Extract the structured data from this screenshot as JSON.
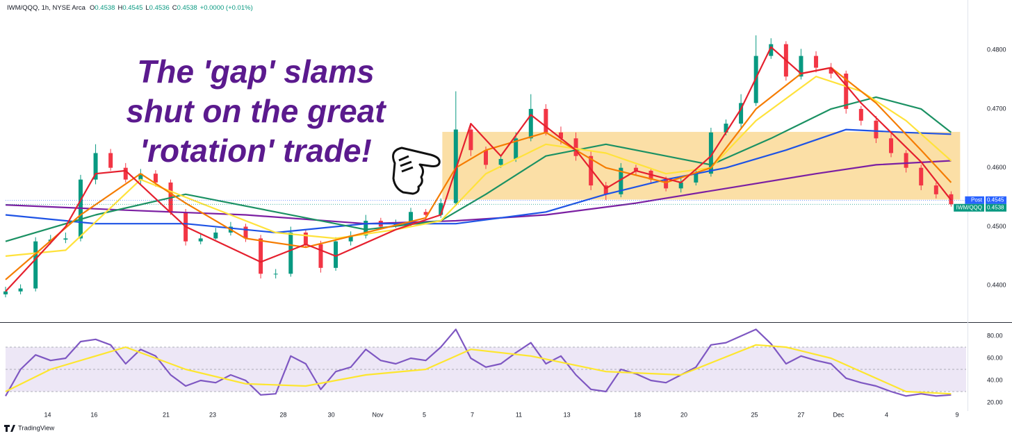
{
  "header": {
    "symbol": "IWM/QQQ, 1h, NYSE Arca",
    "ohlc": [
      {
        "key": "O",
        "text": "0.4538"
      },
      {
        "key": "H",
        "text": "0.4545"
      },
      {
        "key": "L",
        "text": "0.4536"
      },
      {
        "key": "C",
        "text": "0.4538"
      }
    ],
    "change": "+0.0000 (+0.01%)"
  },
  "branding": "TradingView",
  "chart_data": [
    {
      "type": "candlestick",
      "xlim": [
        0,
        64
      ],
      "ylim": [
        0.4339,
        0.4885
      ],
      "yticks": [
        {
          "value": 0.44,
          "label": "0.4400"
        },
        {
          "value": 0.45,
          "label": "0.4500"
        },
        {
          "value": 0.46,
          "label": "0.4600"
        },
        {
          "value": 0.47,
          "label": "0.4700"
        },
        {
          "value": 0.48,
          "label": "0.4800"
        }
      ],
      "up_color": "#089981",
      "down_color": "#f23645",
      "open": [
        0.4385,
        0.439,
        0.4395,
        0.4475,
        0.4478,
        0.448,
        0.458,
        0.4625,
        0.46,
        0.458,
        0.459,
        0.4575,
        0.4525,
        0.4475,
        0.448,
        0.449,
        0.45,
        0.448,
        0.442,
        0.442,
        0.449,
        0.447,
        0.443,
        0.4475,
        0.4485,
        0.451,
        0.45,
        0.4505,
        0.4525,
        0.452,
        0.454,
        0.4665,
        0.463,
        0.4605,
        0.4615,
        0.465,
        0.47,
        0.466,
        0.465,
        0.462,
        0.457,
        0.4555,
        0.46,
        0.4595,
        0.458,
        0.4565,
        0.4575,
        0.459,
        0.466,
        0.4675,
        0.471,
        0.479,
        0.481,
        0.4755,
        0.479,
        0.477,
        0.476,
        0.47,
        0.468,
        0.465,
        0.4625,
        0.46,
        0.457,
        0.4555
      ],
      "high": [
        0.4398,
        0.4402,
        0.4482,
        0.4486,
        0.449,
        0.4588,
        0.464,
        0.4632,
        0.4608,
        0.4598,
        0.4596,
        0.458,
        0.453,
        0.4488,
        0.4498,
        0.4508,
        0.4505,
        0.4486,
        0.4428,
        0.45,
        0.4495,
        0.4476,
        0.4482,
        0.4492,
        0.452,
        0.4515,
        0.4512,
        0.4532,
        0.453,
        0.4548,
        0.473,
        0.4675,
        0.4636,
        0.4622,
        0.466,
        0.4725,
        0.4708,
        0.467,
        0.466,
        0.4628,
        0.4576,
        0.4608,
        0.4605,
        0.46,
        0.4585,
        0.4582,
        0.4598,
        0.4668,
        0.4682,
        0.4725,
        0.4825,
        0.482,
        0.4815,
        0.4802,
        0.4798,
        0.4778,
        0.4765,
        0.4705,
        0.4688,
        0.4658,
        0.463,
        0.4605,
        0.4575,
        0.456
      ],
      "low": [
        0.438,
        0.4385,
        0.439,
        0.447,
        0.4472,
        0.4475,
        0.4572,
        0.4595,
        0.4575,
        0.4572,
        0.4568,
        0.452,
        0.4468,
        0.447,
        0.4478,
        0.4485,
        0.4474,
        0.4412,
        0.4412,
        0.4415,
        0.4465,
        0.4422,
        0.4425,
        0.4468,
        0.448,
        0.4495,
        0.4498,
        0.45,
        0.4512,
        0.4515,
        0.4535,
        0.462,
        0.4598,
        0.46,
        0.461,
        0.4645,
        0.4655,
        0.464,
        0.4612,
        0.4562,
        0.4545,
        0.455,
        0.4588,
        0.4574,
        0.456,
        0.4558,
        0.457,
        0.4585,
        0.4655,
        0.4668,
        0.4705,
        0.4785,
        0.4748,
        0.475,
        0.4762,
        0.4752,
        0.4692,
        0.4672,
        0.4642,
        0.4618,
        0.4592,
        0.4562,
        0.4548,
        0.4534
      ],
      "close": [
        0.439,
        0.4395,
        0.4475,
        0.4478,
        0.448,
        0.458,
        0.4625,
        0.46,
        0.458,
        0.459,
        0.4575,
        0.4525,
        0.4475,
        0.448,
        0.449,
        0.45,
        0.448,
        0.442,
        0.442,
        0.449,
        0.447,
        0.443,
        0.4475,
        0.4485,
        0.451,
        0.45,
        0.4505,
        0.4525,
        0.452,
        0.454,
        0.4665,
        0.463,
        0.4605,
        0.4615,
        0.465,
        0.47,
        0.466,
        0.465,
        0.462,
        0.457,
        0.4555,
        0.46,
        0.4595,
        0.458,
        0.4565,
        0.4575,
        0.459,
        0.466,
        0.4675,
        0.471,
        0.479,
        0.481,
        0.4755,
        0.479,
        0.477,
        0.476,
        0.47,
        0.468,
        0.465,
        0.4625,
        0.46,
        0.457,
        0.4555,
        0.4538
      ],
      "series": [
        {
          "color": "#7b1fa2",
          "x": [
            0,
            8,
            16,
            24,
            30,
            36,
            42,
            48,
            54,
            58,
            63
          ],
          "values": [
            0.4537,
            0.4528,
            0.452,
            0.4505,
            0.451,
            0.452,
            0.454,
            0.4565,
            0.459,
            0.4605,
            0.4612
          ]
        },
        {
          "color": "#1e53e5",
          "x": [
            0,
            6,
            12,
            18,
            24,
            30,
            36,
            40,
            44,
            48,
            52,
            56,
            60,
            63
          ],
          "values": [
            0.452,
            0.4505,
            0.4505,
            0.449,
            0.4505,
            0.4505,
            0.4525,
            0.4555,
            0.458,
            0.46,
            0.463,
            0.4665,
            0.466,
            0.4657
          ]
        },
        {
          "color": "#1b9163",
          "x": [
            0,
            6,
            12,
            18,
            24,
            29,
            32,
            36,
            40,
            44,
            47,
            51,
            55,
            58,
            61,
            63
          ],
          "values": [
            0.4475,
            0.452,
            0.4555,
            0.4525,
            0.4495,
            0.451,
            0.4555,
            0.462,
            0.464,
            0.462,
            0.4605,
            0.465,
            0.47,
            0.472,
            0.47,
            0.466
          ]
        },
        {
          "color": "#ffe23b",
          "x": [
            0,
            4,
            9,
            13,
            18,
            22,
            26,
            29,
            32,
            36,
            40,
            44,
            47,
            50,
            54,
            57,
            60,
            63
          ],
          "values": [
            0.445,
            0.446,
            0.458,
            0.454,
            0.449,
            0.448,
            0.4495,
            0.451,
            0.459,
            0.464,
            0.4625,
            0.459,
            0.46,
            0.468,
            0.4755,
            0.473,
            0.468,
            0.4612
          ]
        },
        {
          "color": "#f57c00",
          "x": [
            0,
            5,
            9,
            12,
            16,
            20,
            24,
            28,
            30,
            32,
            36,
            40,
            44,
            47,
            50,
            53,
            55,
            58,
            61,
            63
          ],
          "values": [
            0.441,
            0.452,
            0.459,
            0.454,
            0.448,
            0.4465,
            0.449,
            0.4515,
            0.46,
            0.463,
            0.466,
            0.46,
            0.4575,
            0.46,
            0.47,
            0.476,
            0.477,
            0.471,
            0.463,
            0.4575
          ]
        },
        {
          "color": "#e5202e",
          "x": [
            0,
            4,
            6,
            8,
            12,
            17,
            20,
            22,
            26,
            29,
            31,
            33,
            35,
            38,
            40,
            42,
            45,
            47,
            49,
            51,
            53,
            55,
            57,
            59,
            61,
            63
          ],
          "values": [
            0.439,
            0.45,
            0.459,
            0.4595,
            0.45,
            0.444,
            0.447,
            0.445,
            0.4495,
            0.452,
            0.4675,
            0.462,
            0.469,
            0.463,
            0.4565,
            0.4595,
            0.4575,
            0.462,
            0.47,
            0.4805,
            0.476,
            0.477,
            0.471,
            0.466,
            0.461,
            0.4545
          ]
        }
      ],
      "highlight": {
        "x": [
          29.1,
          63.6
        ],
        "y": [
          0.4546,
          0.4661
        ],
        "color": "#f9c96b"
      },
      "annotation": [
        "The 'gap' slams",
        "shut on the great",
        "'rotation' trade!"
      ],
      "price_tags": [
        {
          "name": "Post",
          "value": 0.4545,
          "label": "0.4545",
          "color": "#2962ff"
        },
        {
          "name": "IWM/QQQ",
          "value": 0.4538,
          "label": "0.4538",
          "color": "#089981"
        }
      ]
    },
    {
      "type": "line",
      "xlim": [
        0,
        64
      ],
      "ylim": [
        12.5,
        91.9
      ],
      "yticks": [
        {
          "value": 20,
          "label": "20.00"
        },
        {
          "value": 40,
          "label": "40.00"
        },
        {
          "value": 60,
          "label": "60.00"
        },
        {
          "value": 80,
          "label": "80.00"
        }
      ],
      "xticks": [
        {
          "value": 2.8,
          "label": "14"
        },
        {
          "value": 5.9,
          "label": "16"
        },
        {
          "value": 10.7,
          "label": "21"
        },
        {
          "value": 13.8,
          "label": "23"
        },
        {
          "value": 18.5,
          "label": "28"
        },
        {
          "value": 21.7,
          "label": "30"
        },
        {
          "value": 24.8,
          "label": "Nov"
        },
        {
          "value": 27.9,
          "label": "5"
        },
        {
          "value": 31.1,
          "label": "7"
        },
        {
          "value": 34.2,
          "label": "11"
        },
        {
          "value": 37.4,
          "label": "13"
        },
        {
          "value": 42.1,
          "label": "18"
        },
        {
          "value": 45.2,
          "label": "20"
        },
        {
          "value": 49.9,
          "label": "25"
        },
        {
          "value": 53.0,
          "label": "27"
        },
        {
          "value": 55.5,
          "label": "Dec"
        },
        {
          "value": 58.7,
          "label": "4"
        },
        {
          "value": 63.4,
          "label": "9"
        }
      ],
      "band": [
        30,
        70
      ],
      "band_color": "#ede7f6",
      "levels": [
        30,
        50,
        70
      ],
      "series": [
        {
          "color": "#7e57c2",
          "values": [
            26,
            50,
            63,
            58,
            60,
            75,
            77,
            72,
            55,
            68,
            62,
            45,
            35,
            40,
            38,
            45,
            40,
            27,
            28,
            62,
            55,
            32,
            48,
            52,
            68,
            58,
            55,
            60,
            58,
            70,
            86,
            60,
            52,
            55,
            65,
            74,
            55,
            62,
            45,
            32,
            30,
            50,
            46,
            40,
            38,
            45,
            52,
            72,
            74,
            80,
            86,
            73,
            55,
            62,
            58,
            55,
            42,
            38,
            35,
            30,
            26,
            28,
            26,
            27
          ]
        },
        {
          "color": "#fde62f",
          "x": [
            0,
            3,
            8,
            12,
            16,
            20,
            24,
            28,
            31,
            35,
            40,
            45,
            50,
            52,
            55,
            60,
            63
          ],
          "values": [
            30,
            50,
            70,
            50,
            37,
            35,
            45,
            50,
            68,
            62,
            48,
            45,
            72,
            70,
            60,
            30,
            28
          ]
        }
      ]
    }
  ]
}
